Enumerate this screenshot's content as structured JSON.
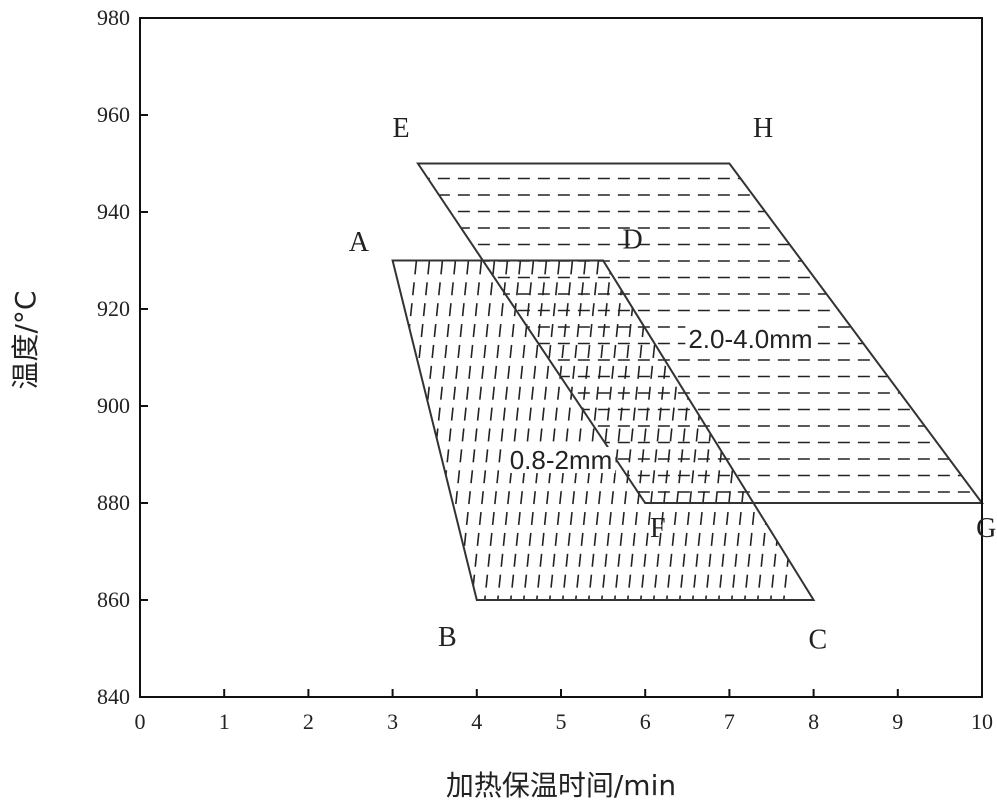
{
  "chart_data": {
    "type": "area",
    "xlabel": "加热保温时间/min",
    "ylabel": "温度/°C",
    "xlim": [
      0,
      10
    ],
    "ylim": [
      840,
      980
    ],
    "xticks": [
      "0",
      "1",
      "2",
      "3",
      "4",
      "5",
      "6",
      "7",
      "8",
      "9",
      "10"
    ],
    "yticks": [
      "840",
      "860",
      "880",
      "900",
      "920",
      "940",
      "960",
      "980"
    ],
    "grid": false,
    "regions": [
      {
        "label": "0.8-2mm",
        "hatch": "vertical-dashes",
        "vertices": [
          {
            "name": "A",
            "x": 3.0,
            "y": 930
          },
          {
            "name": "B",
            "x": 4.0,
            "y": 860
          },
          {
            "name": "C",
            "x": 8.0,
            "y": 860
          },
          {
            "name": "D",
            "x": 5.5,
            "y": 930
          }
        ],
        "label_pos": {
          "x": 5.0,
          "y": 887
        }
      },
      {
        "label": "2.0-4.0mm",
        "hatch": "horizontal-dashes",
        "vertices": [
          {
            "name": "E",
            "x": 3.3,
            "y": 950
          },
          {
            "name": "F",
            "x": 6.0,
            "y": 880
          },
          {
            "name": "G",
            "x": 10.0,
            "y": 880
          },
          {
            "name": "H",
            "x": 7.0,
            "y": 950
          }
        ],
        "label_pos": {
          "x": 7.25,
          "y": 912
        }
      }
    ],
    "point_labels": [
      {
        "text": "E",
        "x": 3.1,
        "y": 955.5
      },
      {
        "text": "H",
        "x": 7.4,
        "y": 955.5
      },
      {
        "text": "A",
        "x": 2.6,
        "y": 932
      },
      {
        "text": "D",
        "x": 5.85,
        "y": 932.5
      },
      {
        "text": "F",
        "x": 6.15,
        "y": 873
      },
      {
        "text": "G",
        "x": 10.05,
        "y": 873
      },
      {
        "text": "B",
        "x": 3.65,
        "y": 850.5
      },
      {
        "text": "C",
        "x": 8.05,
        "y": 850
      }
    ]
  }
}
